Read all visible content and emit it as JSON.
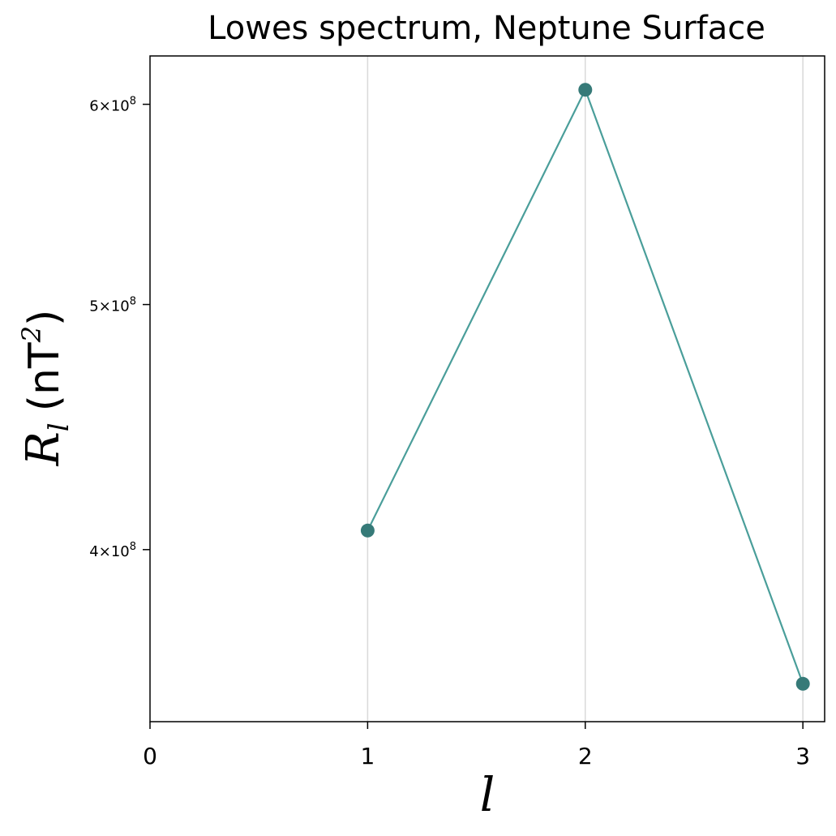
{
  "chart_data": {
    "type": "line",
    "title": "Lowes spectrum, Neptune  Surface",
    "xlabel": "l",
    "ylabel": {
      "symbol": "R",
      "subscript": "l",
      "unit_prefix": "(nT",
      "unit_power": "2",
      "unit_suffix": ")"
    },
    "x": [
      1,
      2,
      3
    ],
    "series": [
      {
        "values": [
          407000000,
          608000000,
          354000000
        ],
        "line_color": "#4a9e9a",
        "marker_color": "#367a78"
      }
    ],
    "xticks": [
      0,
      1,
      2,
      3
    ],
    "xlim": [
      0,
      3.1
    ],
    "yscale": "log",
    "ylim": [
      342000000,
      627000000
    ],
    "yticks": [
      {
        "value": 400000000,
        "mantissa": "4",
        "base": "10",
        "exponent": "8"
      },
      {
        "value": 500000000,
        "mantissa": "5",
        "base": "10",
        "exponent": "8"
      },
      {
        "value": 600000000,
        "mantissa": "6",
        "base": "10",
        "exponent": "8"
      }
    ],
    "x_grid": true,
    "y_grid": false,
    "grid_color": "#d9d9d9"
  }
}
